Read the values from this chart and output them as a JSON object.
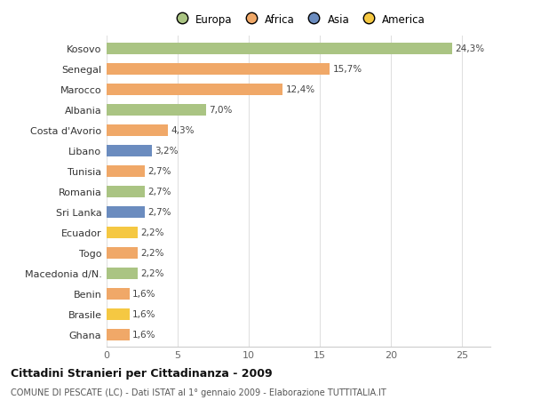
{
  "categories": [
    "Kosovo",
    "Senegal",
    "Marocco",
    "Albania",
    "Costa d'Avorio",
    "Libano",
    "Tunisia",
    "Romania",
    "Sri Lanka",
    "Ecuador",
    "Togo",
    "Macedonia d/N.",
    "Benin",
    "Brasile",
    "Ghana"
  ],
  "values": [
    24.3,
    15.7,
    12.4,
    7.0,
    4.3,
    3.2,
    2.7,
    2.7,
    2.7,
    2.2,
    2.2,
    2.2,
    1.6,
    1.6,
    1.6
  ],
  "labels": [
    "24,3%",
    "15,7%",
    "12,4%",
    "7,0%",
    "4,3%",
    "3,2%",
    "2,7%",
    "2,7%",
    "2,7%",
    "2,2%",
    "2,2%",
    "2,2%",
    "1,6%",
    "1,6%",
    "1,6%"
  ],
  "colors": [
    "#aac483",
    "#f0a868",
    "#f0a868",
    "#aac483",
    "#f0a868",
    "#6b8cbf",
    "#f0a868",
    "#aac483",
    "#6b8cbf",
    "#f5c842",
    "#f0a868",
    "#aac483",
    "#f0a868",
    "#f5c842",
    "#f0a868"
  ],
  "legend_labels": [
    "Europa",
    "Africa",
    "Asia",
    "America"
  ],
  "legend_colors": [
    "#aac483",
    "#f0a868",
    "#6b8cbf",
    "#f5c842"
  ],
  "title": "Cittadini Stranieri per Cittadinanza - 2009",
  "subtitle": "COMUNE DI PESCATE (LC) - Dati ISTAT al 1° gennaio 2009 - Elaborazione TUTTITALIA.IT",
  "xlim": [
    0,
    27
  ],
  "xticks": [
    0,
    5,
    10,
    15,
    20,
    25
  ],
  "background_color": "#ffffff",
  "grid_color": "#e0e0e0",
  "bar_height": 0.55
}
